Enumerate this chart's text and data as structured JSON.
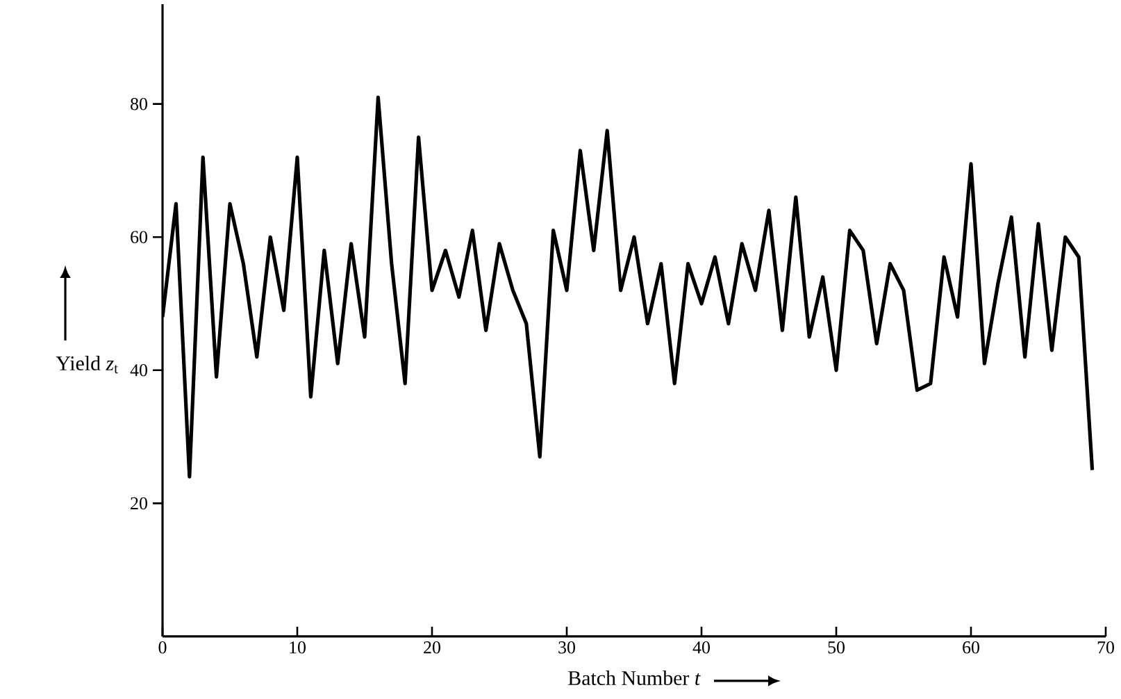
{
  "chart_data": {
    "type": "line",
    "xlabel": "Batch Number *t*",
    "ylabel": "Yield *z*$_{t}$",
    "x": [
      0,
      1,
      2,
      3,
      4,
      5,
      6,
      7,
      8,
      9,
      10,
      11,
      12,
      13,
      14,
      15,
      16,
      17,
      18,
      19,
      20,
      21,
      22,
      23,
      24,
      25,
      26,
      27,
      28,
      29,
      30,
      31,
      32,
      33,
      34,
      35,
      36,
      37,
      38,
      39,
      40,
      41,
      42,
      43,
      44,
      45,
      46,
      47,
      48,
      49,
      50,
      51,
      52,
      53,
      54,
      55,
      56,
      57,
      58,
      59,
      60,
      61,
      62,
      63,
      64,
      65,
      66,
      67,
      68,
      69
    ],
    "series": [
      {
        "color": "#000000",
        "values": [
          48,
          65,
          24,
          72,
          39,
          65,
          56,
          42,
          60,
          49,
          72,
          36,
          58,
          41,
          59,
          45,
          81,
          56,
          38,
          75,
          52,
          58,
          51,
          61,
          46,
          59,
          52,
          47,
          27,
          61,
          52,
          73,
          58,
          76,
          52,
          60,
          47,
          56,
          38,
          56,
          50,
          57,
          47,
          59,
          52,
          64,
          46,
          66,
          45,
          54,
          40,
          61,
          58,
          44,
          56,
          52,
          37,
          38,
          57,
          48,
          71,
          41,
          53,
          63,
          42,
          62,
          43,
          60,
          57,
          25
        ]
      }
    ],
    "xlim": [
      0,
      70
    ],
    "xticks": [
      0,
      10,
      20,
      30,
      40,
      50,
      60,
      70
    ],
    "ylim": [
      0,
      95
    ],
    "yticks": [
      20,
      40,
      60,
      80
    ],
    "grid": false,
    "marker": "none",
    "line_style": "solid"
  }
}
